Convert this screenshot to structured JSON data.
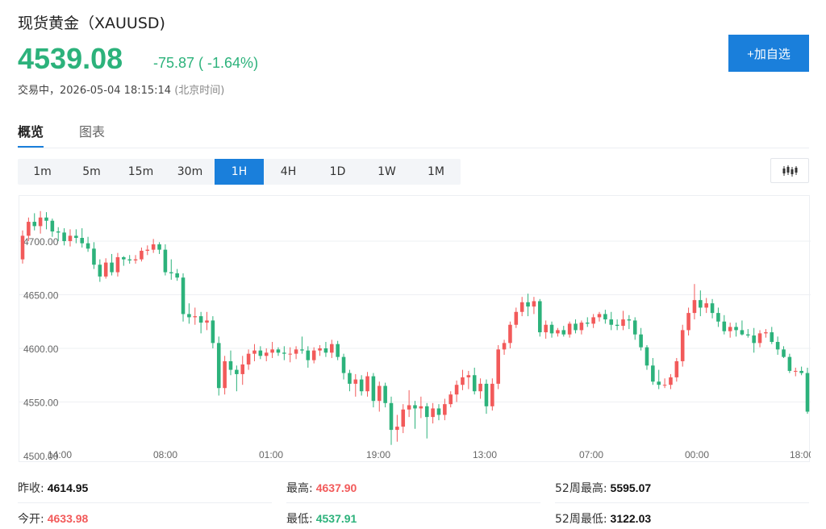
{
  "header": {
    "title": "现货黄金（XAUUSD)",
    "price": "4539.08",
    "change": "-75.87 ( -1.64%)",
    "status": "交易中，2026-05-04 18:15:14",
    "timezone": "(北京时间)",
    "add_label": "+加自选"
  },
  "tabs": [
    "概览",
    "图表"
  ],
  "periods": [
    "1m",
    "5m",
    "15m",
    "30m",
    "1H",
    "4H",
    "1D",
    "1W",
    "1M"
  ],
  "active_period": "1H",
  "colors": {
    "up": "#f25a5a",
    "down": "#2cb27b",
    "accent": "#1a7fdb"
  },
  "chart_data": {
    "type": "candlestick",
    "y_ticks": [
      "4500.00",
      "4550.00",
      "4600.00",
      "4650.00",
      "4700.00"
    ],
    "x_ticks": [
      "14:00",
      "08:00",
      "01:00",
      "19:00",
      "13:00",
      "07:00",
      "00:00",
      "18:00"
    ],
    "ylim": [
      4500,
      4730
    ],
    "candles": [
      [
        4683,
        4710,
        4679,
        4705
      ],
      [
        4705,
        4722,
        4700,
        4718
      ],
      [
        4718,
        4726,
        4710,
        4714
      ],
      [
        4714,
        4728,
        4707,
        4722
      ],
      [
        4722,
        4727,
        4711,
        4719
      ],
      [
        4719,
        4721,
        4704,
        4709
      ],
      [
        4709,
        4713,
        4700,
        4708
      ],
      [
        4708,
        4712,
        4696,
        4700
      ],
      [
        4700,
        4711,
        4695,
        4705
      ],
      [
        4705,
        4711,
        4698,
        4703
      ],
      [
        4703,
        4712,
        4694,
        4698
      ],
      [
        4698,
        4704,
        4690,
        4693
      ],
      [
        4693,
        4699,
        4674,
        4678
      ],
      [
        4678,
        4683,
        4662,
        4667
      ],
      [
        4667,
        4684,
        4665,
        4680
      ],
      [
        4680,
        4688,
        4668,
        4671
      ],
      [
        4671,
        4689,
        4667,
        4685
      ],
      [
        4685,
        4686,
        4677,
        4683
      ],
      [
        4683,
        4687,
        4679,
        4682
      ],
      [
        4682,
        4687,
        4679,
        4683
      ],
      [
        4683,
        4694,
        4681,
        4691
      ],
      [
        4691,
        4696,
        4687,
        4692
      ],
      [
        4692,
        4702,
        4689,
        4697
      ],
      [
        4697,
        4699,
        4688,
        4692
      ],
      [
        4692,
        4697,
        4668,
        4671
      ],
      [
        4671,
        4683,
        4664,
        4670
      ],
      [
        4670,
        4674,
        4663,
        4666
      ],
      [
        4666,
        4670,
        4625,
        4632
      ],
      [
        4632,
        4642,
        4623,
        4629
      ],
      [
        4629,
        4638,
        4622,
        4630
      ],
      [
        4630,
        4634,
        4614,
        4624
      ],
      [
        4624,
        4634,
        4617,
        4626
      ],
      [
        4626,
        4630,
        4600,
        4605
      ],
      [
        4605,
        4611,
        4556,
        4563
      ],
      [
        4563,
        4593,
        4557,
        4588
      ],
      [
        4588,
        4598,
        4575,
        4580
      ],
      [
        4580,
        4584,
        4560,
        4576
      ],
      [
        4576,
        4593,
        4566,
        4585
      ],
      [
        4585,
        4599,
        4580,
        4595
      ],
      [
        4595,
        4604,
        4588,
        4598
      ],
      [
        4598,
        4602,
        4590,
        4593
      ],
      [
        4593,
        4600,
        4588,
        4596
      ],
      [
        4596,
        4606,
        4591,
        4599
      ],
      [
        4599,
        4601,
        4593,
        4596
      ],
      [
        4596,
        4602,
        4589,
        4595
      ],
      [
        4595,
        4601,
        4587,
        4595
      ],
      [
        4595,
        4602,
        4590,
        4599
      ],
      [
        4599,
        4611,
        4595,
        4598
      ],
      [
        4598,
        4602,
        4582,
        4589
      ],
      [
        4589,
        4601,
        4586,
        4598
      ],
      [
        4598,
        4603,
        4593,
        4600
      ],
      [
        4600,
        4606,
        4592,
        4596
      ],
      [
        4596,
        4608,
        4591,
        4604
      ],
      [
        4604,
        4607,
        4589,
        4592
      ],
      [
        4592,
        4595,
        4571,
        4577
      ],
      [
        4577,
        4580,
        4560,
        4567
      ],
      [
        4567,
        4576,
        4555,
        4571
      ],
      [
        4571,
        4575,
        4556,
        4560
      ],
      [
        4560,
        4578,
        4555,
        4574
      ],
      [
        4574,
        4577,
        4545,
        4551
      ],
      [
        4551,
        4569,
        4541,
        4565
      ],
      [
        4565,
        4568,
        4545,
        4549
      ],
      [
        4549,
        4555,
        4510,
        4524
      ],
      [
        4524,
        4538,
        4513,
        4527
      ],
      [
        4527,
        4548,
        4521,
        4543
      ],
      [
        4543,
        4561,
        4536,
        4547
      ],
      [
        4547,
        4551,
        4525,
        4544
      ],
      [
        4544,
        4555,
        4535,
        4546
      ],
      [
        4546,
        4549,
        4516,
        4536
      ],
      [
        4536,
        4549,
        4530,
        4544
      ],
      [
        4544,
        4548,
        4533,
        4538
      ],
      [
        4538,
        4553,
        4533,
        4548
      ],
      [
        4548,
        4560,
        4545,
        4557
      ],
      [
        4557,
        4570,
        4550,
        4566
      ],
      [
        4566,
        4580,
        4561,
        4573
      ],
      [
        4573,
        4579,
        4562,
        4575
      ],
      [
        4575,
        4582,
        4557,
        4560
      ],
      [
        4560,
        4572,
        4553,
        4567
      ],
      [
        4567,
        4571,
        4539,
        4546
      ],
      [
        4546,
        4572,
        4542,
        4567
      ],
      [
        4567,
        4603,
        4562,
        4599
      ],
      [
        4599,
        4608,
        4594,
        4605
      ],
      [
        4605,
        4625,
        4600,
        4622
      ],
      [
        4622,
        4638,
        4619,
        4634
      ],
      [
        4634,
        4648,
        4630,
        4643
      ],
      [
        4643,
        4651,
        4630,
        4639
      ],
      [
        4639,
        4648,
        4632,
        4644
      ],
      [
        4644,
        4646,
        4611,
        4615
      ],
      [
        4615,
        4626,
        4609,
        4622
      ],
      [
        4622,
        4625,
        4610,
        4614
      ],
      [
        4614,
        4619,
        4611,
        4617
      ],
      [
        4617,
        4621,
        4611,
        4613
      ],
      [
        4613,
        4625,
        4610,
        4623
      ],
      [
        4623,
        4627,
        4614,
        4617
      ],
      [
        4617,
        4626,
        4613,
        4624
      ],
      [
        4624,
        4629,
        4620,
        4623
      ],
      [
        4623,
        4632,
        4619,
        4629
      ],
      [
        4629,
        4634,
        4625,
        4632
      ],
      [
        4632,
        4636,
        4623,
        4627
      ],
      [
        4627,
        4634,
        4617,
        4622
      ],
      [
        4622,
        4627,
        4617,
        4621
      ],
      [
        4621,
        4635,
        4617,
        4627
      ],
      [
        4627,
        4631,
        4618,
        4626
      ],
      [
        4626,
        4629,
        4608,
        4613
      ],
      [
        4613,
        4619,
        4598,
        4601
      ],
      [
        4601,
        4603,
        4580,
        4584
      ],
      [
        4584,
        4591,
        4566,
        4569
      ],
      [
        4569,
        4580,
        4562,
        4566
      ],
      [
        4566,
        4572,
        4563,
        4566
      ],
      [
        4566,
        4576,
        4562,
        4573
      ],
      [
        4573,
        4591,
        4569,
        4588
      ],
      [
        4588,
        4622,
        4583,
        4617
      ],
      [
        4617,
        4638,
        4612,
        4633
      ],
      [
        4633,
        4660,
        4627,
        4645
      ],
      [
        4645,
        4654,
        4630,
        4638
      ],
      [
        4638,
        4647,
        4633,
        4642
      ],
      [
        4642,
        4646,
        4628,
        4633
      ],
      [
        4633,
        4638,
        4620,
        4625
      ],
      [
        4625,
        4631,
        4613,
        4616
      ],
      [
        4616,
        4624,
        4610,
        4620
      ],
      [
        4620,
        4624,
        4611,
        4617
      ],
      [
        4617,
        4626,
        4612,
        4613
      ],
      [
        4613,
        4618,
        4610,
        4612
      ],
      [
        4612,
        4619,
        4596,
        4605
      ],
      [
        4605,
        4617,
        4601,
        4614
      ],
      [
        4614,
        4618,
        4610,
        4615
      ],
      [
        4615,
        4620,
        4604,
        4606
      ],
      [
        4606,
        4611,
        4594,
        4599
      ],
      [
        4599,
        4602,
        4591,
        4592
      ],
      [
        4592,
        4595,
        4577,
        4579
      ],
      [
        4579,
        4582,
        4574,
        4579
      ],
      [
        4579,
        4583,
        4575,
        4577
      ],
      [
        4577,
        4582,
        4539,
        4541
      ]
    ]
  },
  "stats": [
    [
      {
        "label": "昨收:",
        "value": "4614.95",
        "color": "black"
      },
      {
        "label": "最高:",
        "value": "4637.90",
        "color": "red"
      },
      {
        "label": "52周最高:",
        "value": "5595.07",
        "color": "black"
      }
    ],
    [
      {
        "label": "今开:",
        "value": "4633.98",
        "color": "red"
      },
      {
        "label": "最低:",
        "value": "4537.91",
        "color": "green"
      },
      {
        "label": "52周最低:",
        "value": "3122.03",
        "color": "black"
      }
    ]
  ]
}
